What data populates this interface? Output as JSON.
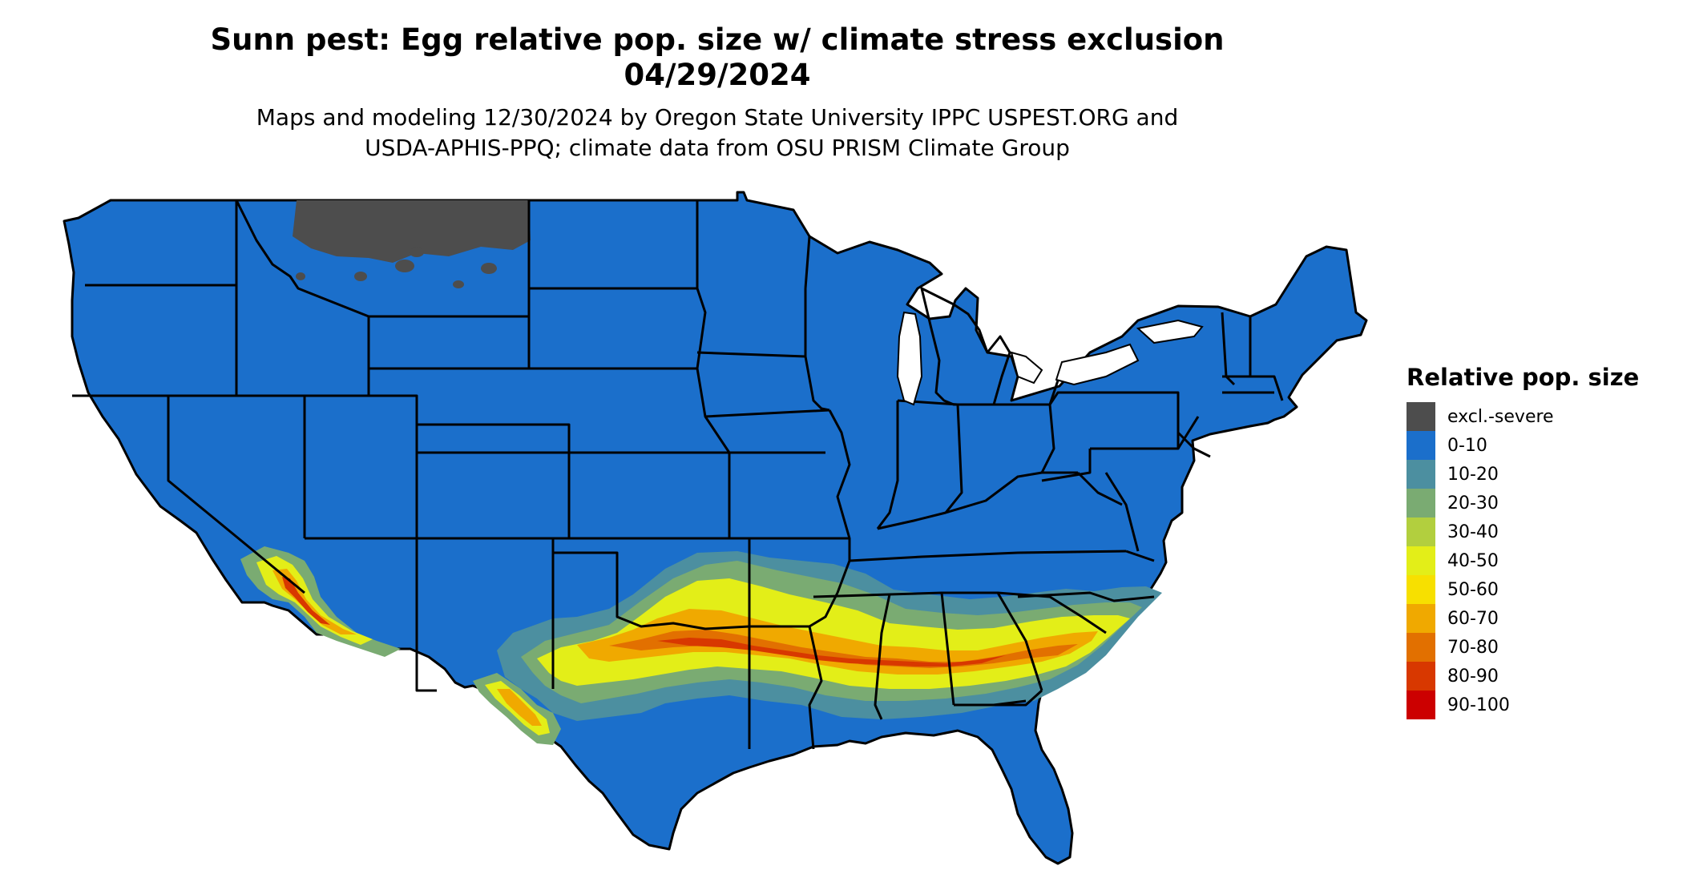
{
  "title": "Sunn pest: Egg relative pop. size w/ climate stress exclusion",
  "date": "04/29/2024",
  "subtitle_line1": "Maps and modeling 12/30/2024 by Oregon State University IPPC USPEST.ORG and",
  "subtitle_line2": "USDA-APHIS-PPQ; climate data from OSU PRISM Climate Group",
  "map": {
    "base_color": "#1b6fcb",
    "border_color": "#000000",
    "excluded_region": "northern Montana",
    "hotspot_regions": [
      "southern Arizona",
      "southwest Texas",
      "Oklahoma–Texas border",
      "Arkansas",
      "Mississippi",
      "Alabama",
      "Georgia",
      "South Carolina",
      "North Carolina"
    ]
  },
  "legend": {
    "title": "Relative pop. size",
    "items": [
      {
        "label": "excl.-severe",
        "color": "#4d4d4d"
      },
      {
        "label": "0-10",
        "color": "#1b6fcb"
      },
      {
        "label": "10-20",
        "color": "#4c8fa0"
      },
      {
        "label": "20-30",
        "color": "#7aab72"
      },
      {
        "label": "30-40",
        "color": "#b2cf3e"
      },
      {
        "label": "40-50",
        "color": "#e3ee18"
      },
      {
        "label": "50-60",
        "color": "#f7e000"
      },
      {
        "label": "60-70",
        "color": "#f0a900"
      },
      {
        "label": "70-80",
        "color": "#e27000"
      },
      {
        "label": "80-90",
        "color": "#d83800"
      },
      {
        "label": "90-100",
        "color": "#cc0000"
      }
    ]
  }
}
